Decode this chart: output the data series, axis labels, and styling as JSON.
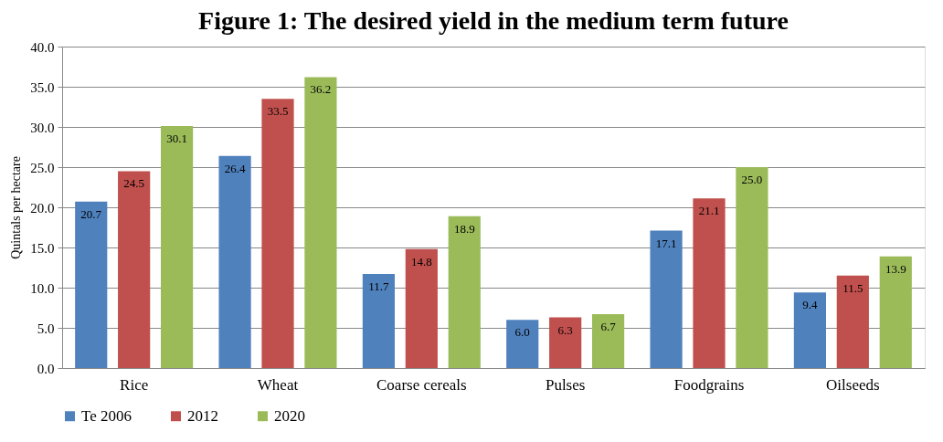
{
  "chart_data": {
    "type": "bar",
    "title": "Figure 1: The desired yield in the medium term future",
    "ylabel": "Quintals per hectare",
    "categories": [
      "Rice",
      "Wheat",
      "Coarse cereals",
      "Pulses",
      "Foodgrains",
      "Oilseeds"
    ],
    "series": [
      {
        "name": "Te 2006",
        "color": "#4f81bd",
        "values": [
          20.7,
          26.4,
          11.7,
          6.0,
          17.1,
          9.4
        ],
        "value_labels": [
          "20.7",
          "26.4",
          "11.7",
          "6.0",
          "17.1",
          "9.4"
        ]
      },
      {
        "name": "2012",
        "color": "#c0504d",
        "values": [
          24.5,
          33.5,
          14.8,
          6.3,
          21.1,
          11.5
        ],
        "value_labels": [
          "24.5",
          "33.5",
          "14.8",
          "6.3",
          "21.1",
          "11.5"
        ]
      },
      {
        "name": "2020",
        "color": "#9bbb59",
        "values": [
          30.1,
          36.2,
          18.9,
          6.7,
          25.0,
          13.9
        ],
        "value_labels": [
          "30.1",
          "36.2",
          "18.9",
          "6.7",
          "25.0",
          "13.9"
        ]
      }
    ],
    "ylim": [
      0,
      40
    ],
    "yticks": [
      {
        "value": 0,
        "label": "0.0"
      },
      {
        "value": 5,
        "label": "5.0"
      },
      {
        "value": 10,
        "label": "10.0"
      },
      {
        "value": 15,
        "label": "15.0"
      },
      {
        "value": 20,
        "label": "20.0"
      },
      {
        "value": 25,
        "label": "25.0"
      },
      {
        "value": 30,
        "label": "30.0"
      },
      {
        "value": 35,
        "label": "35.0"
      },
      {
        "value": 40,
        "label": "40.0"
      }
    ],
    "grid": "y",
    "legend": "bottom"
  }
}
